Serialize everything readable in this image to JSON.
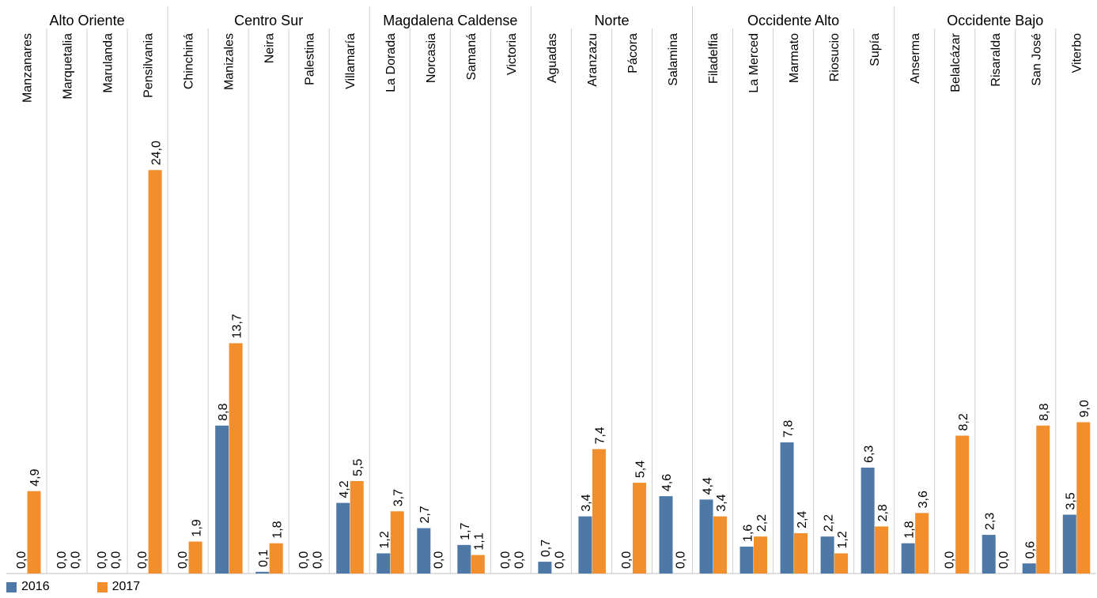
{
  "chart_data": {
    "type": "bar",
    "title": "",
    "xlabel": "",
    "ylabel": "",
    "ylim": [
      0,
      25
    ],
    "grid": false,
    "legend_position": "bottom-left",
    "groups": [
      {
        "name": "Alto Oriente",
        "municipalities": [
          "Manzanares",
          "Marquetalia",
          "Marulanda",
          "Pensilvania"
        ]
      },
      {
        "name": "Centro Sur",
        "municipalities": [
          "Chinchiná",
          "Manizales",
          "Neira",
          "Palestina",
          "Villamaría"
        ]
      },
      {
        "name": "Magdalena Caldense",
        "municipalities": [
          "La Dorada",
          "Norcasia",
          "Samaná",
          "Victoria"
        ]
      },
      {
        "name": "Norte",
        "municipalities": [
          "Aguadas",
          "Aranzazu",
          "Pácora",
          "Salamina"
        ]
      },
      {
        "name": "Occidente Alto",
        "municipalities": [
          "Filadelfia",
          "La Merced",
          "Marmato",
          "Riosucio",
          "Supía"
        ]
      },
      {
        "name": "Occidente Bajo",
        "municipalities": [
          "Anserma",
          "Belalcázar",
          "Risaralda",
          "San José",
          "Viterbo"
        ]
      }
    ],
    "categories": [
      "Manzanares",
      "Marquetalia",
      "Marulanda",
      "Pensilvania",
      "Chinchiná",
      "Manizales",
      "Neira",
      "Palestina",
      "Villamaría",
      "La Dorada",
      "Norcasia",
      "Samaná",
      "Victoria",
      "Aguadas",
      "Aranzazu",
      "Pácora",
      "Salamina",
      "Filadelfia",
      "La Merced",
      "Marmato",
      "Riosucio",
      "Supía",
      "Anserma",
      "Belalcázar",
      "Risaralda",
      "San José",
      "Viterbo"
    ],
    "series": [
      {
        "name": "2016",
        "color": "#4e79a7",
        "values": [
          0.0,
          0.0,
          0.0,
          0.0,
          0.0,
          8.8,
          0.1,
          0.0,
          4.2,
          1.2,
          2.7,
          1.7,
          0.0,
          0.7,
          3.4,
          0.0,
          4.6,
          4.4,
          1.6,
          7.8,
          2.2,
          6.3,
          1.8,
          0.0,
          2.3,
          0.6,
          3.5
        ],
        "labels": [
          "0,0",
          "0,0",
          "0,0",
          "0,0",
          "0,0",
          "8,8",
          "0,1",
          "0,0",
          "4,2",
          "1,2",
          "2,7",
          "1,7",
          "0,0",
          "0,7",
          "3,4",
          "0,0",
          "4,6",
          "4,4",
          "1,6",
          "7,8",
          "2,2",
          "6,3",
          "1,8",
          "0,0",
          "2,3",
          "0,6",
          "3,5"
        ]
      },
      {
        "name": "2017",
        "color": "#f28e2b",
        "values": [
          4.9,
          0.0,
          0.0,
          24.0,
          1.9,
          13.7,
          1.8,
          0.0,
          5.5,
          3.7,
          0.0,
          1.1,
          0.0,
          0.0,
          7.4,
          5.4,
          0.0,
          3.4,
          2.2,
          2.4,
          1.2,
          2.8,
          3.6,
          8.2,
          0.0,
          8.8,
          9.0
        ],
        "labels": [
          "4,9",
          "0,0",
          "0,0",
          "24,0",
          "1,9",
          "13,7",
          "1,8",
          "0,0",
          "5,5",
          "3,7",
          "0,0",
          "1,1",
          "0,0",
          "0,0",
          "7,4",
          "5,4",
          "0,0",
          "3,4",
          "2,2",
          "2,4",
          "1,2",
          "2,8",
          "3,6",
          "8,2",
          "0,0",
          "8,8",
          "9,0"
        ]
      }
    ]
  }
}
